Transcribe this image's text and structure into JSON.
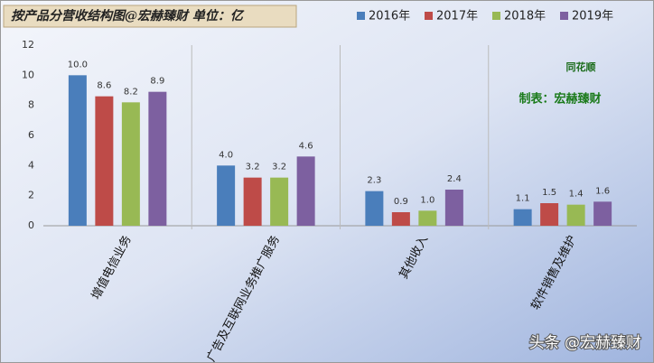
{
  "chart_data": {
    "type": "bar",
    "title": "按产品分营收结构图@宏赫臻财 单位：亿",
    "categories": [
      "增值电信业务",
      "广告及互联网业务推广服务",
      "其他收入",
      "软件销售及维护"
    ],
    "series": [
      {
        "name": "2016年",
        "color": "#4a7ebb",
        "values": [
          10,
          4,
          2.3,
          1.1
        ],
        "value_labels": [
          "10.0",
          "4.0",
          "2.3",
          "1.1"
        ]
      },
      {
        "name": "2017年",
        "color": "#be4b48",
        "values": [
          8.6,
          3.2,
          0.9,
          1.5
        ],
        "value_labels": [
          "8.6",
          "3.2",
          "0.9",
          "1.5"
        ]
      },
      {
        "name": "2018年",
        "color": "#98b954",
        "values": [
          8.2,
          3.2,
          1,
          1.4
        ],
        "value_labels": [
          "8.2",
          "3.2",
          "1.0",
          "1.4"
        ]
      },
      {
        "name": "2019年",
        "color": "#7d60a0",
        "values": [
          8.9,
          4.6,
          2.4,
          1.6
        ],
        "value_labels": [
          "8.9",
          "4.6",
          "2.4",
          "1.6"
        ]
      }
    ],
    "ylim": [
      0,
      12
    ],
    "yticks": [
      0,
      2,
      4,
      6,
      8,
      10,
      12
    ],
    "grid": false,
    "annotations": [
      "同花顺",
      "制表：宏赫臻财",
      "头条 @宏赫臻财"
    ]
  }
}
